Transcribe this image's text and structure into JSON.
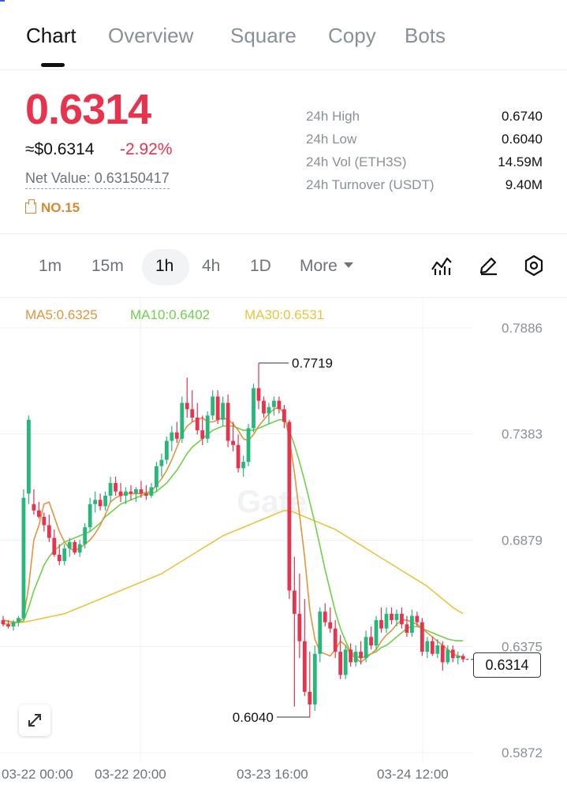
{
  "tabs": [
    {
      "label": "Chart",
      "active": true
    },
    {
      "label": "Overview",
      "active": false
    },
    {
      "label": "Square",
      "active": false
    },
    {
      "label": "Copy",
      "active": false
    },
    {
      "label": "Bots",
      "active": false
    }
  ],
  "ticker": {
    "price": "0.6314",
    "usd_price": "≈$0.6314",
    "change": "-2.92%",
    "net_value": "Net Value: 0.63150417",
    "rank": "NO.15"
  },
  "stats": [
    {
      "label": "24h  High",
      "value": "0.6740"
    },
    {
      "label": "24h  Low",
      "value": "0.6040"
    },
    {
      "label": "24h  Vol (ETH3S)",
      "value": "14.59M"
    },
    {
      "label": "24h  Turnover (USDT)",
      "value": "9.40M"
    }
  ],
  "timeframes": {
    "items": [
      "1m",
      "15m",
      "1h",
      "4h",
      "1D"
    ],
    "active": "1h",
    "more_label": "More"
  },
  "tools": [
    "indicator-icon",
    "draw-pen-icon",
    "settings-hexagon-icon"
  ],
  "colors": {
    "up": "#26b87a",
    "down": "#e8334f",
    "ma5": "#e3953c",
    "ma10": "#6fd14a",
    "ma30": "#edc23d",
    "accent_red": "#e8334f"
  },
  "ma_legend": [
    {
      "label": "MA5:0.6325",
      "color": "#e3953c"
    },
    {
      "label": "MA10:0.6402",
      "color": "#6fd14a"
    },
    {
      "label": "MA30:0.6531",
      "color": "#edc23d"
    }
  ],
  "chart_data": {
    "type": "candlestick",
    "y_ticks": [
      "0.7886",
      "0.7383",
      "0.6879",
      "0.6375",
      "0.5872"
    ],
    "ylim": [
      0.5872,
      0.7886
    ],
    "x_ticks": [
      "03-22 00:00",
      "03-22 20:00",
      "03-23 16:00",
      "03-24 12:00"
    ],
    "high_marker": "0.7719",
    "low_marker": "0.6040",
    "current_price_label": "0.6314",
    "candles": [
      {
        "o": 0.65,
        "h": 0.652,
        "l": 0.647,
        "c": 0.648
      },
      {
        "o": 0.648,
        "h": 0.65,
        "l": 0.646,
        "c": 0.647
      },
      {
        "o": 0.647,
        "h": 0.65,
        "l": 0.645,
        "c": 0.649
      },
      {
        "o": 0.649,
        "h": 0.652,
        "l": 0.647,
        "c": 0.651
      },
      {
        "o": 0.651,
        "h": 0.712,
        "l": 0.65,
        "c": 0.708
      },
      {
        "o": 0.71,
        "h": 0.747,
        "l": 0.705,
        "c": 0.745
      },
      {
        "o": 0.705,
        "h": 0.712,
        "l": 0.7,
        "c": 0.702
      },
      {
        "o": 0.702,
        "h": 0.706,
        "l": 0.698,
        "c": 0.699
      },
      {
        "o": 0.699,
        "h": 0.701,
        "l": 0.692,
        "c": 0.695
      },
      {
        "o": 0.695,
        "h": 0.7,
        "l": 0.687,
        "c": 0.689
      },
      {
        "o": 0.689,
        "h": 0.693,
        "l": 0.68,
        "c": 0.681
      },
      {
        "o": 0.681,
        "h": 0.686,
        "l": 0.676,
        "c": 0.678
      },
      {
        "o": 0.678,
        "h": 0.686,
        "l": 0.676,
        "c": 0.684
      },
      {
        "o": 0.684,
        "h": 0.689,
        "l": 0.68,
        "c": 0.687
      },
      {
        "o": 0.687,
        "h": 0.688,
        "l": 0.681,
        "c": 0.682
      },
      {
        "o": 0.682,
        "h": 0.688,
        "l": 0.68,
        "c": 0.686
      },
      {
        "o": 0.686,
        "h": 0.696,
        "l": 0.684,
        "c": 0.694
      },
      {
        "o": 0.694,
        "h": 0.708,
        "l": 0.692,
        "c": 0.705
      },
      {
        "o": 0.705,
        "h": 0.711,
        "l": 0.701,
        "c": 0.707
      },
      {
        "o": 0.707,
        "h": 0.71,
        "l": 0.702,
        "c": 0.704
      },
      {
        "o": 0.704,
        "h": 0.711,
        "l": 0.702,
        "c": 0.709
      },
      {
        "o": 0.709,
        "h": 0.718,
        "l": 0.706,
        "c": 0.715
      },
      {
        "o": 0.715,
        "h": 0.718,
        "l": 0.709,
        "c": 0.711
      },
      {
        "o": 0.711,
        "h": 0.715,
        "l": 0.706,
        "c": 0.709
      },
      {
        "o": 0.709,
        "h": 0.713,
        "l": 0.705,
        "c": 0.711
      },
      {
        "o": 0.711,
        "h": 0.714,
        "l": 0.707,
        "c": 0.71
      },
      {
        "o": 0.71,
        "h": 0.713,
        "l": 0.706,
        "c": 0.712
      },
      {
        "o": 0.712,
        "h": 0.716,
        "l": 0.708,
        "c": 0.71
      },
      {
        "o": 0.71,
        "h": 0.714,
        "l": 0.707,
        "c": 0.709
      },
      {
        "o": 0.709,
        "h": 0.715,
        "l": 0.708,
        "c": 0.713
      },
      {
        "o": 0.713,
        "h": 0.725,
        "l": 0.711,
        "c": 0.723
      },
      {
        "o": 0.723,
        "h": 0.729,
        "l": 0.718,
        "c": 0.726
      },
      {
        "o": 0.726,
        "h": 0.737,
        "l": 0.724,
        "c": 0.735
      },
      {
        "o": 0.735,
        "h": 0.742,
        "l": 0.73,
        "c": 0.739
      },
      {
        "o": 0.739,
        "h": 0.744,
        "l": 0.734,
        "c": 0.736
      },
      {
        "o": 0.736,
        "h": 0.756,
        "l": 0.734,
        "c": 0.753
      },
      {
        "o": 0.753,
        "h": 0.765,
        "l": 0.746,
        "c": 0.75
      },
      {
        "o": 0.75,
        "h": 0.759,
        "l": 0.744,
        "c": 0.746
      },
      {
        "o": 0.746,
        "h": 0.753,
        "l": 0.738,
        "c": 0.74
      },
      {
        "o": 0.74,
        "h": 0.747,
        "l": 0.733,
        "c": 0.736
      },
      {
        "o": 0.736,
        "h": 0.749,
        "l": 0.734,
        "c": 0.747
      },
      {
        "o": 0.747,
        "h": 0.759,
        "l": 0.745,
        "c": 0.756
      },
      {
        "o": 0.756,
        "h": 0.759,
        "l": 0.743,
        "c": 0.745
      },
      {
        "o": 0.745,
        "h": 0.756,
        "l": 0.742,
        "c": 0.753
      },
      {
        "o": 0.753,
        "h": 0.757,
        "l": 0.732,
        "c": 0.735
      },
      {
        "o": 0.735,
        "h": 0.744,
        "l": 0.73,
        "c": 0.733
      },
      {
        "o": 0.733,
        "h": 0.738,
        "l": 0.72,
        "c": 0.722
      },
      {
        "o": 0.722,
        "h": 0.728,
        "l": 0.718,
        "c": 0.725
      },
      {
        "o": 0.725,
        "h": 0.743,
        "l": 0.723,
        "c": 0.741
      },
      {
        "o": 0.741,
        "h": 0.762,
        "l": 0.739,
        "c": 0.76
      },
      {
        "o": 0.76,
        "h": 0.7719,
        "l": 0.75,
        "c": 0.754
      },
      {
        "o": 0.754,
        "h": 0.756,
        "l": 0.746,
        "c": 0.748
      },
      {
        "o": 0.748,
        "h": 0.753,
        "l": 0.743,
        "c": 0.751
      },
      {
        "o": 0.751,
        "h": 0.756,
        "l": 0.747,
        "c": 0.754
      },
      {
        "o": 0.754,
        "h": 0.756,
        "l": 0.748,
        "c": 0.75
      },
      {
        "o": 0.75,
        "h": 0.752,
        "l": 0.741,
        "c": 0.744
      },
      {
        "o": 0.744,
        "h": 0.745,
        "l": 0.66,
        "c": 0.664
      },
      {
        "o": 0.664,
        "h": 0.68,
        "l": 0.609,
        "c": 0.653
      },
      {
        "o": 0.653,
        "h": 0.672,
        "l": 0.632,
        "c": 0.64
      },
      {
        "o": 0.64,
        "h": 0.66,
        "l": 0.614,
        "c": 0.616
      },
      {
        "o": 0.616,
        "h": 0.635,
        "l": 0.604,
        "c": 0.61
      },
      {
        "o": 0.61,
        "h": 0.638,
        "l": 0.607,
        "c": 0.634
      },
      {
        "o": 0.634,
        "h": 0.656,
        "l": 0.63,
        "c": 0.654
      },
      {
        "o": 0.654,
        "h": 0.658,
        "l": 0.647,
        "c": 0.649
      },
      {
        "o": 0.649,
        "h": 0.656,
        "l": 0.644,
        "c": 0.646
      },
      {
        "o": 0.646,
        "h": 0.65,
        "l": 0.632,
        "c": 0.635
      },
      {
        "o": 0.635,
        "h": 0.643,
        "l": 0.622,
        "c": 0.624
      },
      {
        "o": 0.624,
        "h": 0.638,
        "l": 0.622,
        "c": 0.636
      },
      {
        "o": 0.636,
        "h": 0.639,
        "l": 0.628,
        "c": 0.63
      },
      {
        "o": 0.63,
        "h": 0.638,
        "l": 0.628,
        "c": 0.635
      },
      {
        "o": 0.635,
        "h": 0.64,
        "l": 0.629,
        "c": 0.632
      },
      {
        "o": 0.632,
        "h": 0.645,
        "l": 0.63,
        "c": 0.642
      },
      {
        "o": 0.642,
        "h": 0.647,
        "l": 0.636,
        "c": 0.638
      },
      {
        "o": 0.638,
        "h": 0.652,
        "l": 0.636,
        "c": 0.65
      },
      {
        "o": 0.65,
        "h": 0.656,
        "l": 0.644,
        "c": 0.646
      },
      {
        "o": 0.646,
        "h": 0.656,
        "l": 0.644,
        "c": 0.653
      },
      {
        "o": 0.653,
        "h": 0.656,
        "l": 0.648,
        "c": 0.65
      },
      {
        "o": 0.65,
        "h": 0.655,
        "l": 0.647,
        "c": 0.653
      },
      {
        "o": 0.653,
        "h": 0.656,
        "l": 0.646,
        "c": 0.648
      },
      {
        "o": 0.648,
        "h": 0.652,
        "l": 0.642,
        "c": 0.644
      },
      {
        "o": 0.644,
        "h": 0.655,
        "l": 0.642,
        "c": 0.652
      },
      {
        "o": 0.652,
        "h": 0.654,
        "l": 0.647,
        "c": 0.649
      },
      {
        "o": 0.649,
        "h": 0.651,
        "l": 0.633,
        "c": 0.635
      },
      {
        "o": 0.635,
        "h": 0.642,
        "l": 0.632,
        "c": 0.64
      },
      {
        "o": 0.64,
        "h": 0.642,
        "l": 0.633,
        "c": 0.634
      },
      {
        "o": 0.634,
        "h": 0.641,
        "l": 0.632,
        "c": 0.638
      },
      {
        "o": 0.638,
        "h": 0.64,
        "l": 0.626,
        "c": 0.63
      },
      {
        "o": 0.63,
        "h": 0.638,
        "l": 0.629,
        "c": 0.636
      },
      {
        "o": 0.636,
        "h": 0.638,
        "l": 0.63,
        "c": 0.632
      },
      {
        "o": 0.632,
        "h": 0.635,
        "l": 0.629,
        "c": 0.633
      },
      {
        "o": 0.633,
        "h": 0.634,
        "l": 0.63,
        "c": 0.6314
      }
    ],
    "ma5": [
      0.65,
      0.6495,
      0.649,
      0.649,
      0.651,
      0.666,
      0.688,
      0.695,
      0.705,
      0.706,
      0.699,
      0.692,
      0.687,
      0.684,
      0.683,
      0.684,
      0.686,
      0.688,
      0.691,
      0.695,
      0.7,
      0.706,
      0.708,
      0.709,
      0.71,
      0.71,
      0.71,
      0.71,
      0.7105,
      0.711,
      0.714,
      0.717,
      0.721,
      0.726,
      0.732,
      0.738,
      0.742,
      0.744,
      0.745,
      0.746,
      0.744,
      0.744,
      0.745,
      0.746,
      0.745,
      0.743,
      0.74,
      0.736,
      0.735,
      0.738,
      0.742,
      0.745,
      0.748,
      0.75,
      0.751,
      0.748,
      0.736,
      0.72,
      0.7,
      0.68,
      0.655,
      0.641,
      0.635,
      0.634,
      0.633,
      0.636,
      0.64,
      0.638,
      0.634,
      0.632,
      0.63,
      0.632,
      0.634,
      0.636,
      0.64,
      0.643,
      0.645,
      0.648,
      0.65,
      0.65,
      0.649,
      0.648,
      0.646,
      0.644,
      0.642,
      0.64,
      0.638,
      0.636,
      0.634,
      0.633,
      0.6325
    ],
    "ma10": [
      0.65,
      0.6495,
      0.649,
      0.649,
      0.6495,
      0.656,
      0.664,
      0.67,
      0.676,
      0.68,
      0.683,
      0.685,
      0.687,
      0.688,
      0.689,
      0.69,
      0.691,
      0.692,
      0.694,
      0.696,
      0.699,
      0.701,
      0.703,
      0.705,
      0.706,
      0.707,
      0.708,
      0.709,
      0.71,
      0.71,
      0.711,
      0.713,
      0.715,
      0.718,
      0.721,
      0.725,
      0.729,
      0.732,
      0.734,
      0.736,
      0.738,
      0.74,
      0.741,
      0.742,
      0.742,
      0.742,
      0.741,
      0.74,
      0.74,
      0.74,
      0.741,
      0.742,
      0.743,
      0.744,
      0.745,
      0.745,
      0.74,
      0.733,
      0.725,
      0.716,
      0.706,
      0.696,
      0.685,
      0.674,
      0.664,
      0.654,
      0.646,
      0.64,
      0.635,
      0.633,
      0.632,
      0.633,
      0.634,
      0.635,
      0.637,
      0.638,
      0.64,
      0.642,
      0.644,
      0.646,
      0.647,
      0.647,
      0.646,
      0.645,
      0.644,
      0.643,
      0.642,
      0.641,
      0.6405,
      0.6402,
      0.6402
    ],
    "ma30": [
      0.648,
      0.6482,
      0.6485,
      0.6488,
      0.649,
      0.6495,
      0.65,
      0.6505,
      0.651,
      0.6515,
      0.652,
      0.6525,
      0.653,
      0.654,
      0.655,
      0.656,
      0.657,
      0.658,
      0.659,
      0.66,
      0.661,
      0.662,
      0.663,
      0.664,
      0.665,
      0.666,
      0.667,
      0.668,
      0.669,
      0.67,
      0.671,
      0.672,
      0.6735,
      0.675,
      0.6765,
      0.678,
      0.6795,
      0.681,
      0.6825,
      0.684,
      0.6855,
      0.687,
      0.6885,
      0.69,
      0.691,
      0.692,
      0.693,
      0.694,
      0.695,
      0.696,
      0.697,
      0.698,
      0.699,
      0.7,
      0.701,
      0.702,
      0.702,
      0.701,
      0.7,
      0.699,
      0.698,
      0.697,
      0.696,
      0.695,
      0.694,
      0.693,
      0.6915,
      0.69,
      0.6885,
      0.687,
      0.6855,
      0.684,
      0.6825,
      0.681,
      0.6795,
      0.678,
      0.6765,
      0.675,
      0.6735,
      0.672,
      0.6705,
      0.669,
      0.6675,
      0.666,
      0.664,
      0.662,
      0.66,
      0.658,
      0.656,
      0.6545,
      0.6531
    ]
  }
}
